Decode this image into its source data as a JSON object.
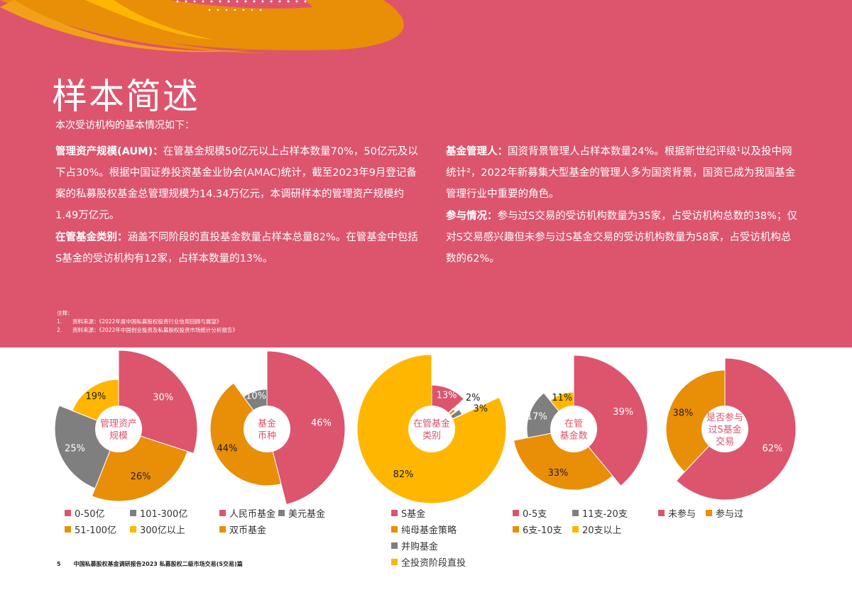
{
  "colors": {
    "background": "#DC556D",
    "pink": "#DC556D",
    "orange": "#E98E07",
    "gray": "#7F7F7F",
    "yellow": "#FFB600",
    "center_text": "#DC556D"
  },
  "header": {
    "title": "样本简述",
    "intro": "本次受访机构的基本情况如下："
  },
  "paragraphs": {
    "aum": {
      "label": "管理资产规模(AUM)：",
      "text": "在管基金规模50亿元以上占样本数量70%，50亿元及以下占30%。根据中国证券投资基金业协会(AMAC)统计，截至2023年9月登记备案的私募股权基金总管理规模为14.34万亿元，本调研样本的管理资产规模约1.49万亿元。"
    },
    "category": {
      "label": "在管基金类别：",
      "text": "涵盖不同阶段的直投基金数量占样本总量82%。在管基金中包括S基金的受访机构有12家，占样本数量的13%。"
    },
    "manager": {
      "label": "基金管理人：",
      "text": "国资背景管理人占样本数量24%。根据新世纪评级¹以及投中网统计²，2022年新募集大型基金的管理人多为国资背景，国资已成为我国基金管理行业中重要的角色。"
    },
    "participation": {
      "label": "参与情况：",
      "text": "参与过S交易的受访机构数量为35家，占受访机构总数的38%；仅对S交易感兴趣但未参与过S基金交易的受访机构数量为58家，占受访机构总数的62%。"
    }
  },
  "notes": {
    "heading": "注释：",
    "items": [
      {
        "num": "1.",
        "text": "资料来源：《2022年度中国私募股权投资行业信用回顾与展望》"
      },
      {
        "num": "2.",
        "text": "资料来源：《2022年中国创业投资及私募股权投资市场统计分析报告》"
      }
    ]
  },
  "chart_data": [
    {
      "type": "pie",
      "title": "管理资产规模",
      "center_label": [
        "管理资产",
        "规模"
      ],
      "categories": [
        "0-50亿",
        "51-100亿",
        "101-300亿",
        "300亿以上"
      ],
      "values": [
        30,
        26,
        25,
        19
      ],
      "labels": [
        "30%",
        "26%",
        "25%",
        "19%"
      ],
      "colors": [
        "#DC556D",
        "#E98E07",
        "#7F7F7F",
        "#FFB600"
      ],
      "radii": [
        111,
        102,
        90,
        70
      ],
      "legend": [
        [
          "0-50亿",
          "#DC556D"
        ],
        [
          "101-300亿",
          "#7F7F7F"
        ],
        [
          "51-100亿",
          "#E98E07"
        ],
        [
          "300亿以上",
          "#FFB600"
        ]
      ]
    },
    {
      "type": "pie",
      "title": "基金币种",
      "center_label": [
        "基金",
        "币种"
      ],
      "categories": [
        "人民币基金",
        "双币基金",
        "美元基金"
      ],
      "values": [
        46,
        44,
        10
      ],
      "labels": [
        "46%",
        "44%",
        "10%"
      ],
      "colors": [
        "#DC556D",
        "#E98E07",
        "#7F7F7F"
      ],
      "radii": [
        110,
        80,
        56
      ],
      "legend": [
        [
          "人民币基金",
          "#DC556D"
        ],
        [
          "美元基金",
          "#7F7F7F"
        ],
        [
          "双币基金",
          "#E98E07"
        ]
      ]
    },
    {
      "type": "pie",
      "title": "在管基金类别",
      "center_label": [
        "在管基金",
        "类别"
      ],
      "categories": [
        "S基金",
        "纯母基金策略",
        "并购基金",
        "全投资阶段直投"
      ],
      "values": [
        13,
        2,
        3,
        82
      ],
      "labels": [
        "13%",
        "2%",
        "3%",
        "82%"
      ],
      "colors": [
        "#DC556D",
        "#E98E07",
        "#7F7F7F",
        "#FFB600"
      ],
      "radii": [
        62,
        42,
        48,
        105
      ],
      "legend": [
        [
          "S基金",
          "#DC556D"
        ],
        [
          "纯母基金策略",
          "#E98E07"
        ],
        [
          "并购基金",
          "#7F7F7F"
        ],
        [
          "全投资阶段直投",
          "#FFB600"
        ]
      ]
    },
    {
      "type": "pie",
      "title": "在管基金数",
      "center_label": [
        "在管",
        "基金数"
      ],
      "categories": [
        "0-5支",
        "6支-10支",
        "11支-20支",
        "20支以上"
      ],
      "values": [
        39,
        33,
        17,
        11
      ],
      "labels": [
        "39%",
        "33%",
        "17%",
        "11%"
      ],
      "colors": [
        "#DC556D",
        "#E98E07",
        "#7F7F7F",
        "#FFB600"
      ],
      "radii": [
        104,
        86,
        66,
        52
      ],
      "legend": [
        [
          "0-5支",
          "#DC556D"
        ],
        [
          "11支-20支",
          "#7F7F7F"
        ],
        [
          "6支-10支",
          "#E98E07"
        ],
        [
          "20支以上",
          "#FFB600"
        ]
      ]
    },
    {
      "type": "pie",
      "title": "是否参与过S基金交易",
      "center_label": [
        "是否参与",
        "过S基金",
        "交易"
      ],
      "categories": [
        "未参与",
        "参与过"
      ],
      "values": [
        62,
        38
      ],
      "labels": [
        "62%",
        "38%"
      ],
      "colors": [
        "#DC556D",
        "#E98E07"
      ],
      "radii": [
        100,
        83
      ],
      "legend": [
        [
          "未参与",
          "#DC556D"
        ],
        [
          "参与过",
          "#E98E07"
        ]
      ]
    }
  ],
  "footer": {
    "page": "5",
    "text": "中国私募股权基金调研报告2023 私募股权二级市场交易(S交易)篇"
  }
}
